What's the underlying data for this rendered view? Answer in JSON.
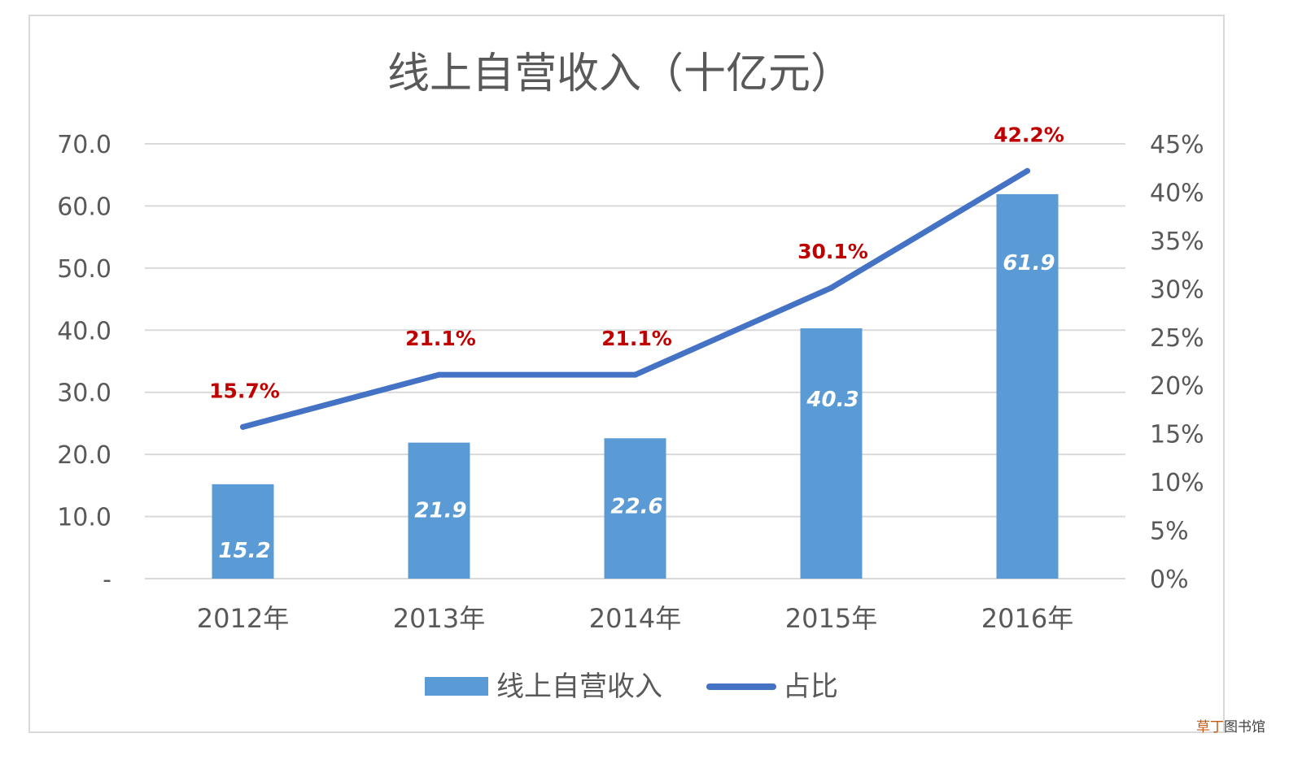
{
  "chart_data": {
    "type": "bar",
    "title": "线上自营收入（十亿元）",
    "categories": [
      "2012年",
      "2013年",
      "2014年",
      "2015年",
      "2016年"
    ],
    "series": [
      {
        "name": "线上自营收入",
        "type": "bar",
        "axis": "left",
        "values": [
          15.2,
          21.9,
          22.6,
          40.3,
          61.9
        ],
        "value_labels": [
          "15.2",
          "21.9",
          "22.6",
          "40.3",
          "61.9"
        ],
        "color": "#5b9bd5"
      },
      {
        "name": "占比",
        "type": "line",
        "axis": "right",
        "values": [
          15.7,
          21.1,
          21.1,
          30.1,
          42.2
        ],
        "value_labels": [
          "15.7%",
          "21.1%",
          "21.1%",
          "30.1%",
          "42.2%"
        ],
        "color": "#4472c4"
      }
    ],
    "left_axis": {
      "ylim": [
        0,
        70
      ],
      "ticks": [
        0,
        10,
        20,
        30,
        40,
        50,
        60,
        70
      ],
      "tick_labels": [
        "-",
        "10.0",
        "20.0",
        "30.0",
        "40.0",
        "50.0",
        "60.0",
        "70.0"
      ]
    },
    "right_axis": {
      "ylim": [
        0,
        45
      ],
      "ticks": [
        0,
        5,
        10,
        15,
        20,
        25,
        30,
        35,
        40,
        45
      ],
      "tick_labels": [
        "0%",
        "5%",
        "10%",
        "15%",
        "20%",
        "25%",
        "30%",
        "35%",
        "40%",
        "45%"
      ]
    },
    "grid": true,
    "legend": "bottom",
    "label_color": "#c00000"
  },
  "watermark": {
    "part1": "草丁",
    "part2": "图书馆",
    "color1": "#c55a11",
    "color2": "#404040"
  }
}
